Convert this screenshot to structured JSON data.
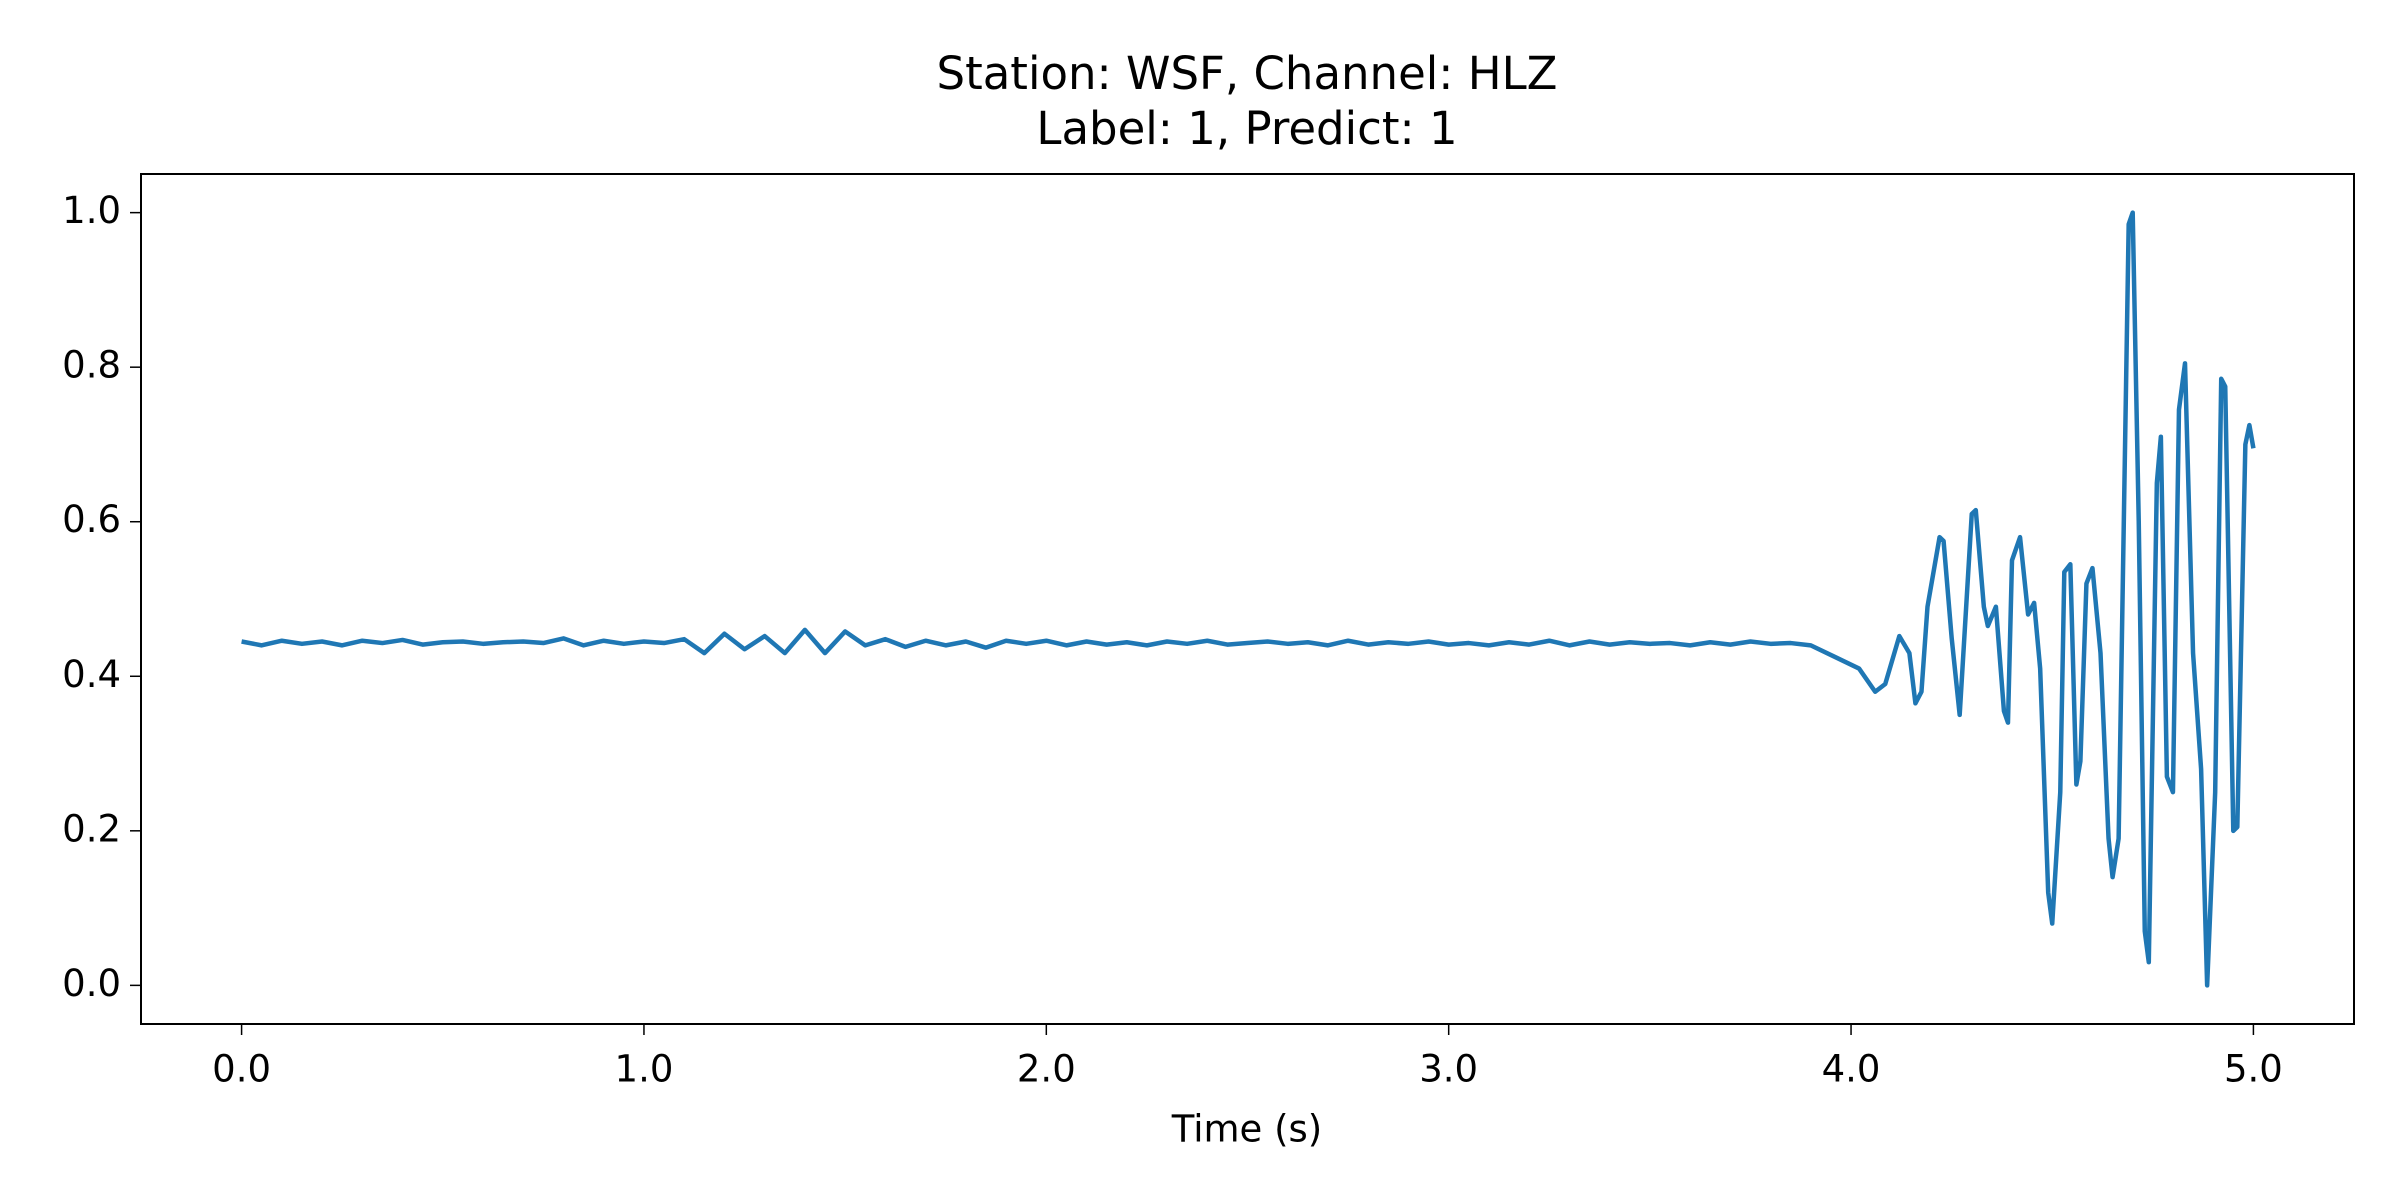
{
  "chart_data": {
    "type": "line",
    "title": "Station: WSF, Channel: HLZ",
    "subtitle": "Label: 1, Predict: 1",
    "xlabel": "Time (s)",
    "color": "#1f77b4",
    "x": [
      0.0,
      0.05,
      0.1,
      0.15,
      0.2,
      0.25,
      0.3,
      0.35,
      0.4,
      0.45,
      0.5,
      0.55,
      0.6,
      0.65,
      0.7,
      0.75,
      0.8,
      0.85,
      0.9,
      0.95,
      1.0,
      1.05,
      1.1,
      1.15,
      1.2,
      1.25,
      1.3,
      1.35,
      1.4,
      1.45,
      1.5,
      1.55,
      1.6,
      1.65,
      1.7,
      1.75,
      1.8,
      1.85,
      1.9,
      1.95,
      2.0,
      2.05,
      2.1,
      2.15,
      2.2,
      2.25,
      2.3,
      2.35,
      2.4,
      2.45,
      2.5,
      2.55,
      2.6,
      2.65,
      2.7,
      2.75,
      2.8,
      2.85,
      2.9,
      2.95,
      3.0,
      3.05,
      3.1,
      3.15,
      3.2,
      3.25,
      3.3,
      3.35,
      3.4,
      3.45,
      3.5,
      3.55,
      3.6,
      3.65,
      3.7,
      3.75,
      3.8,
      3.85,
      3.9,
      3.96,
      4.02,
      4.06,
      4.085,
      4.12,
      4.145,
      4.16,
      4.175,
      4.19,
      4.22,
      4.23,
      4.25,
      4.27,
      4.3,
      4.31,
      4.33,
      4.34,
      4.36,
      4.38,
      4.39,
      4.4,
      4.42,
      4.44,
      4.455,
      4.47,
      4.49,
      4.5,
      4.52,
      4.53,
      4.545,
      4.56,
      4.57,
      4.585,
      4.6,
      4.62,
      4.64,
      4.65,
      4.665,
      4.69,
      4.7,
      4.715,
      4.73,
      4.74,
      4.76,
      4.77,
      4.785,
      4.8,
      4.815,
      4.83,
      4.85,
      4.87,
      4.885,
      4.905,
      4.92,
      4.93,
      4.95,
      4.96,
      4.98,
      4.99,
      5.0
    ],
    "values": [
      0.445,
      0.44,
      0.446,
      0.442,
      0.445,
      0.44,
      0.446,
      0.443,
      0.447,
      0.441,
      0.444,
      0.445,
      0.442,
      0.444,
      0.445,
      0.443,
      0.449,
      0.44,
      0.446,
      0.442,
      0.445,
      0.443,
      0.448,
      0.43,
      0.455,
      0.435,
      0.452,
      0.43,
      0.46,
      0.43,
      0.458,
      0.44,
      0.448,
      0.438,
      0.446,
      0.44,
      0.445,
      0.437,
      0.446,
      0.442,
      0.446,
      0.44,
      0.445,
      0.441,
      0.444,
      0.44,
      0.445,
      0.442,
      0.446,
      0.441,
      0.443,
      0.445,
      0.442,
      0.444,
      0.44,
      0.446,
      0.441,
      0.444,
      0.442,
      0.445,
      0.441,
      0.443,
      0.44,
      0.444,
      0.441,
      0.446,
      0.44,
      0.445,
      0.441,
      0.444,
      0.442,
      0.443,
      0.44,
      0.444,
      0.441,
      0.445,
      0.442,
      0.443,
      0.44,
      0.425,
      0.41,
      0.38,
      0.39,
      0.452,
      0.43,
      0.365,
      0.38,
      0.49,
      0.58,
      0.575,
      0.45,
      0.35,
      0.61,
      0.615,
      0.49,
      0.465,
      0.49,
      0.355,
      0.34,
      0.55,
      0.58,
      0.48,
      0.495,
      0.41,
      0.12,
      0.08,
      0.25,
      0.535,
      0.545,
      0.26,
      0.29,
      0.52,
      0.54,
      0.43,
      0.19,
      0.14,
      0.19,
      0.985,
      1.0,
      0.6,
      0.07,
      0.03,
      0.65,
      0.71,
      0.27,
      0.25,
      0.745,
      0.805,
      0.43,
      0.28,
      0.0,
      0.25,
      0.785,
      0.775,
      0.2,
      0.205,
      0.7,
      0.725,
      0.695
    ],
    "xlim": [
      -0.25,
      5.25
    ],
    "xticks": [
      {
        "value": 0,
        "label": "0.0"
      },
      {
        "value": 1,
        "label": "1.0"
      },
      {
        "value": 2,
        "label": "2.0"
      },
      {
        "value": 3,
        "label": "3.0"
      },
      {
        "value": 4,
        "label": "4.0"
      },
      {
        "value": 5,
        "label": "5.0"
      }
    ],
    "ylim": [
      -0.05,
      1.05
    ],
    "yticks": [
      {
        "value": 0,
        "label": "0.0"
      },
      0.2,
      0.4,
      0.6,
      0.8,
      {
        "value": 1,
        "label": "1.0"
      }
    ],
    "grid": false
  }
}
